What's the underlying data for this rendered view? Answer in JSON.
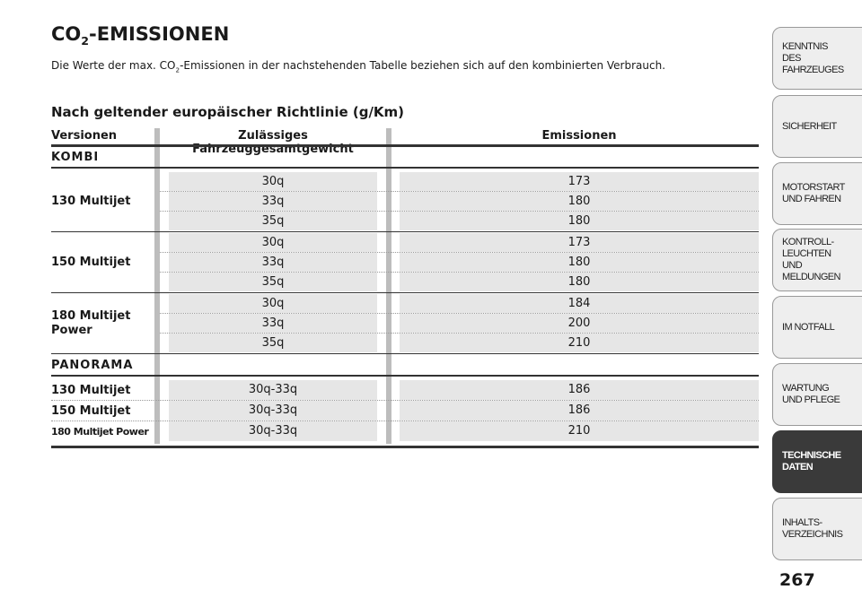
{
  "header": {
    "title": [
      "CO",
      "2",
      "-EMISSIONEN"
    ],
    "intro": [
      "Die Werte der max. CO",
      "2",
      "-Emissionen in der nachstehenden Tabelle beziehen sich auf den kombinierten Verbrauch."
    ],
    "subtitle": "Nach geltender europäischer Richtlinie (g/Km)"
  },
  "table": {
    "columns": [
      "Versionen",
      "Zulässiges Fahrzeuggesamtgewicht",
      "Emissionen"
    ],
    "groups": [
      {
        "name": "KOMBI",
        "versions": [
          {
            "name": "130 Multijet",
            "weights": [
              "30q",
              "33q",
              "35q"
            ],
            "emissions": [
              173,
              180,
              180
            ]
          },
          {
            "name": "150 Multijet",
            "weights": [
              "30q",
              "33q",
              "35q"
            ],
            "emissions": [
              173,
              180,
              180
            ]
          },
          {
            "name": "180 Multijet Power",
            "weights": [
              "30q",
              "33q",
              "35q"
            ],
            "emissions": [
              184,
              200,
              210
            ]
          }
        ]
      },
      {
        "name": "PANORAMA",
        "versions": [
          {
            "name": "130 Multijet",
            "weights": [
              "30q-33q"
            ],
            "emissions": [
              186
            ]
          },
          {
            "name": "150 Multijet",
            "weights": [
              "30q-33q"
            ],
            "emissions": [
              186
            ]
          },
          {
            "name": "180 Multijet Power",
            "weights": [
              "30q-33q"
            ],
            "emissions": [
              210
            ]
          }
        ]
      }
    ]
  },
  "sidebar": {
    "tabs": [
      {
        "lines": [
          "KENNTNIS",
          "DES FAHRZEUGES"
        ],
        "active": false
      },
      {
        "lines": [
          "SICHERHEIT"
        ],
        "active": false
      },
      {
        "lines": [
          "MOTORSTART",
          "UND FAHREN"
        ],
        "active": false
      },
      {
        "lines": [
          "KONTROLL-",
          "LEUCHTEN",
          "UND MELDUNGEN"
        ],
        "active": false
      },
      {
        "lines": [
          "IM NOTFALL"
        ],
        "active": false
      },
      {
        "lines": [
          "WARTUNG",
          "UND PFLEGE"
        ],
        "active": false
      },
      {
        "lines": [
          "TECHNISCHE",
          "DATEN"
        ],
        "active": true
      },
      {
        "lines": [
          "INHALTS-",
          "VERZEICHNIS"
        ],
        "active": false
      }
    ]
  },
  "page_number": 267
}
